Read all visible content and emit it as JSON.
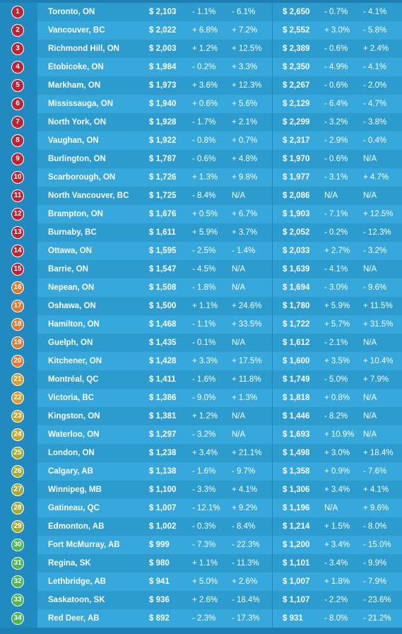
{
  "table": {
    "rows": [
      {
        "rank": 1,
        "city": "Toronto, ON",
        "cells": [
          "$ 2,103",
          "- 1.1%",
          "- 6.1%",
          "$ 2,650",
          "- 0.7%",
          "- 4.1%"
        ],
        "color": "#c81f2e"
      },
      {
        "rank": 2,
        "city": "Vancouver, BC",
        "cells": [
          "$ 2,022",
          "+ 6.8%",
          "+ 7.2%",
          "$ 2,552",
          "+ 3.0%",
          "- 5.8%"
        ],
        "color": "#c81f2e"
      },
      {
        "rank": 3,
        "city": "Richmond Hill, ON",
        "cells": [
          "$ 2,003",
          "+ 1.2%",
          "+ 12.5%",
          "$ 2,389",
          "- 0.6%",
          "+ 2.4%"
        ],
        "color": "#c81f2e"
      },
      {
        "rank": 4,
        "city": "Etobicoke, ON",
        "cells": [
          "$ 1,984",
          "- 0.2%",
          "+ 3.3%",
          "$ 2,350",
          "- 4.9%",
          "- 4.1%"
        ],
        "color": "#c81f2e"
      },
      {
        "rank": 5,
        "city": "Markham, ON",
        "cells": [
          "$ 1,973",
          "+ 3.6%",
          "+ 12.3%",
          "$ 2,267",
          "- 0.6%",
          "- 2.0%"
        ],
        "color": "#c81f2e"
      },
      {
        "rank": 6,
        "city": "Mississauga, ON",
        "cells": [
          "$ 1,940",
          "+ 0.6%",
          "+ 5.6%",
          "$ 2,129",
          "- 6.4%",
          "- 4.7%"
        ],
        "color": "#c81f2e"
      },
      {
        "rank": 7,
        "city": "North York, ON",
        "cells": [
          "$ 1,928",
          "- 1.7%",
          "+ 2.1%",
          "$ 2,299",
          "- 3.2%",
          "- 3.8%"
        ],
        "color": "#c81f2e"
      },
      {
        "rank": 8,
        "city": "Vaughan, ON",
        "cells": [
          "$ 1,922",
          "- 0.8%",
          "+ 0.7%",
          "$ 2,317",
          "- 2.9%",
          "- 0.4%"
        ],
        "color": "#c81f2e"
      },
      {
        "rank": 9,
        "city": "Burlington, ON",
        "cells": [
          "$ 1,787",
          "- 0.6%",
          "+ 4.8%",
          "$ 1,970",
          "- 0.6%",
          "N/A"
        ],
        "color": "#c81f2e"
      },
      {
        "rank": 10,
        "city": "Scarborough, ON",
        "cells": [
          "$ 1,726",
          "+ 1.3%",
          "+ 9.8%",
          "$ 1,977",
          "- 3.1%",
          "+ 4.7%"
        ],
        "color": "#c81f2e"
      },
      {
        "rank": 11,
        "city": "North Vancouver, BC",
        "cells": [
          "$ 1,725",
          "- 8.4%",
          "N/A",
          "$ 2,086",
          "N/A",
          "N/A"
        ],
        "color": "#c81f2e"
      },
      {
        "rank": 12,
        "city": "Brampton, ON",
        "cells": [
          "$ 1,676",
          "+ 0.5%",
          "+ 6.7%",
          "$ 1,903",
          "- 7.1%",
          "+ 12.5%"
        ],
        "color": "#c81f2e"
      },
      {
        "rank": 13,
        "city": "Burnaby, BC",
        "cells": [
          "$ 1,611",
          "+ 5.9%",
          "+ 3.7%",
          "$ 2,052",
          "- 0.2%",
          "- 12.3%"
        ],
        "color": "#c81f2e"
      },
      {
        "rank": 14,
        "city": "Ottawa, ON",
        "cells": [
          "$ 1,595",
          "- 2.5%",
          "- 1.4%",
          "$ 2,033",
          "+ 2.7%",
          "- 3.2%"
        ],
        "color": "#c81f2e"
      },
      {
        "rank": 15,
        "city": "Barrie, ON",
        "cells": [
          "$ 1,547",
          "- 4.5%",
          "N/A",
          "$ 1,639",
          "- 4.1%",
          "N/A"
        ],
        "color": "#c81f2e"
      },
      {
        "rank": 16,
        "city": "Nepean, ON",
        "cells": [
          "$ 1,508",
          "- 1.8%",
          "N/A",
          "$ 1,694",
          "- 3.0%",
          "- 9.6%"
        ],
        "color": "#e8772a"
      },
      {
        "rank": 17,
        "city": "Oshawa, ON",
        "cells": [
          "$ 1,500",
          "+ 1.1%",
          "+ 24.6%",
          "$ 1,780",
          "+ 5.9%",
          "+ 11.5%"
        ],
        "color": "#e8772a"
      },
      {
        "rank": 18,
        "city": "Hamilton, ON",
        "cells": [
          "$ 1,468",
          "- 1.1%",
          "+ 33.5%",
          "$ 1,722",
          "+ 5.7%",
          "+ 31.5%"
        ],
        "color": "#e8772a"
      },
      {
        "rank": 19,
        "city": "Guelph, ON",
        "cells": [
          "$ 1,435",
          "- 0.1%",
          "N/A",
          "$ 1,612",
          "- 2.1%",
          "N/A"
        ],
        "color": "#e8772a"
      },
      {
        "rank": 20,
        "city": "Kitchener, ON",
        "cells": [
          "$ 1,428",
          "+ 3.3%",
          "+ 17.5%",
          "$ 1,600",
          "+ 3.5%",
          "+ 10.4%"
        ],
        "color": "#e8772a"
      },
      {
        "rank": 21,
        "city": "Montréal, QC",
        "cells": [
          "$ 1,411",
          "- 1.6%",
          "+ 11.8%",
          "$ 1,749",
          "- 5.0%",
          "+ 7.9%"
        ],
        "color": "#e59a23"
      },
      {
        "rank": 22,
        "city": "Victoria, BC",
        "cells": [
          "$ 1,386",
          "- 9.0%",
          "+ 1.3%",
          "$ 1,818",
          "+ 0.8%",
          "N/A"
        ],
        "color": "#e59a23"
      },
      {
        "rank": 23,
        "city": "Kingston, ON",
        "cells": [
          "$ 1,381",
          "+ 1.2%",
          "N/A",
          "$ 1,446",
          "- 8.2%",
          "N/A"
        ],
        "color": "#c9a62a"
      },
      {
        "rank": 24,
        "city": "Waterloo, ON",
        "cells": [
          "$ 1,297",
          "- 3.2%",
          "N/A",
          "$ 1,693",
          "+ 10.9%",
          "N/A"
        ],
        "color": "#c9a62a"
      },
      {
        "rank": 25,
        "city": "London, ON",
        "cells": [
          "$ 1,238",
          "+ 3.4%",
          "+ 21.1%",
          "$ 1,498",
          "+ 3.0%",
          "+ 18.4%"
        ],
        "color": "#a8ab2c"
      },
      {
        "rank": 26,
        "city": "Calgary, AB",
        "cells": [
          "$ 1,138",
          "- 1.6%",
          "- 9.7%",
          "$ 1,358",
          "+ 0.9%",
          "- 7.6%"
        ],
        "color": "#a8ab2c"
      },
      {
        "rank": 27,
        "city": "Winnipeg, MB",
        "cells": [
          "$ 1,100",
          "- 3.3%",
          "+ 4.1%",
          "$ 1,306",
          "+ 3.4%",
          "+ 4.1%"
        ],
        "color": "#a8ab2c"
      },
      {
        "rank": 28,
        "city": "Gatineau, QC",
        "cells": [
          "$ 1,007",
          "- 12.1%",
          "+ 9.2%",
          "$ 1,196",
          "N/A",
          "+ 9.6%"
        ],
        "color": "#a8ab2c"
      },
      {
        "rank": 29,
        "city": "Edmonton, AB",
        "cells": [
          "$ 1,002",
          "- 0.3%",
          "- 8.4%",
          "$ 1,214",
          "+ 1.5%",
          "- 8.0%"
        ],
        "color": "#a8ab2c"
      },
      {
        "rank": 30,
        "city": "Fort McMurray, AB",
        "cells": [
          "$ 999",
          "- 7.3%",
          "- 22.3%",
          "$ 1,200",
          "+ 3.4%",
          "- 15.0%"
        ],
        "color": "#4cb848"
      },
      {
        "rank": 31,
        "city": "Regina, SK",
        "cells": [
          "$ 980",
          "+ 1.1%",
          "- 11.3%",
          "$ 1,101",
          "- 3.4%",
          "- 9.9%"
        ],
        "color": "#4cb848"
      },
      {
        "rank": 32,
        "city": "Lethbridge, AB",
        "cells": [
          "$ 941",
          "+ 5.0%",
          "+ 2.6%",
          "$ 1,007",
          "+ 1.8%",
          "- 7.9%"
        ],
        "color": "#4cb848"
      },
      {
        "rank": 33,
        "city": "Saskatoon, SK",
        "cells": [
          "$ 936",
          "+ 2.6%",
          "- 18.4%",
          "$ 1,107",
          "- 2.2%",
          "- 23.6%"
        ],
        "color": "#4cb848"
      },
      {
        "rank": 34,
        "city": "Red Deer, AB",
        "cells": [
          "$ 892",
          "- 2.3%",
          "- 17.3%",
          "$ 931",
          "- 8.0%",
          "- 21.2%"
        ],
        "color": "#4cb848"
      }
    ]
  }
}
